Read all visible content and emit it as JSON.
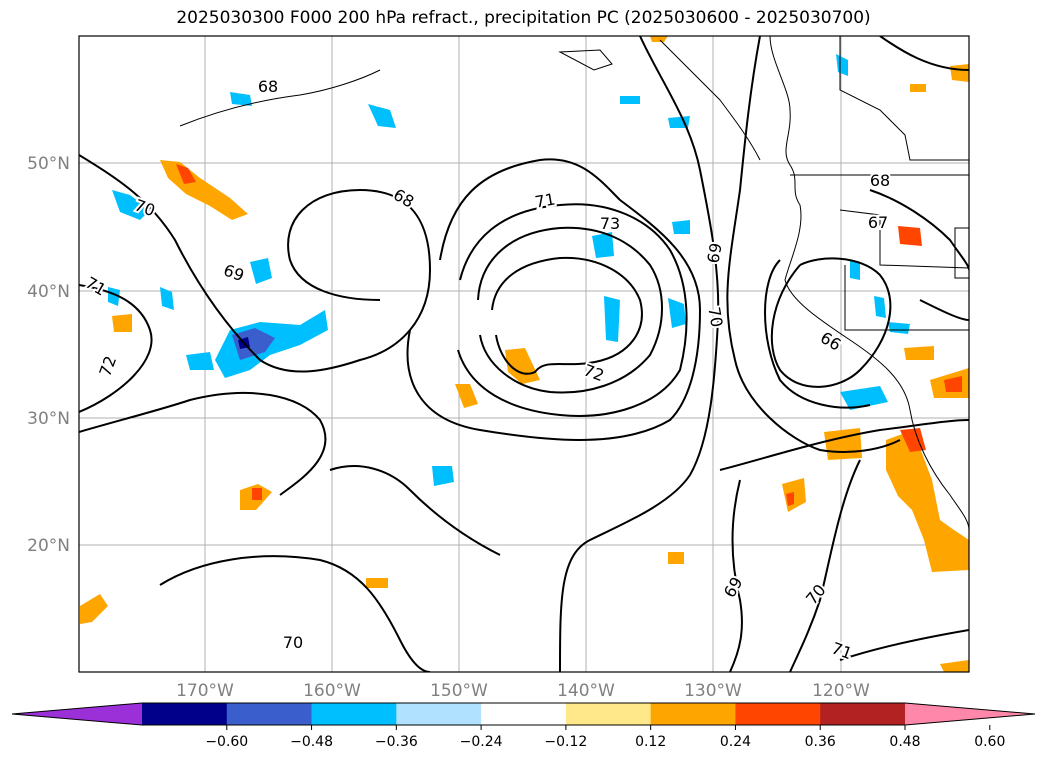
{
  "title": "2025030300 F000 200 hPa refract., precipitation PC (2025030600 - 2025030700)",
  "lat_labels": [
    "50°N",
    "40°N",
    "30°N",
    "20°N"
  ],
  "lon_labels": [
    "170°W",
    "160°W",
    "150°W",
    "140°W",
    "130°W",
    "120°W"
  ],
  "contour_labels": [
    "68",
    "70",
    "71",
    "69",
    "68",
    "71",
    "73",
    "72",
    "72",
    "69",
    "70",
    "66",
    "68",
    "67",
    "70",
    "69",
    "70",
    "71"
  ],
  "colorbar": {
    "ticks": [
      "−0.60",
      "−0.48",
      "−0.36",
      "−0.24",
      "−0.12",
      "0.12",
      "0.24",
      "0.36",
      "0.48",
      "0.60"
    ],
    "colors": [
      "#9b30d9",
      "#00008b",
      "#3a5fcd",
      "#00bfff",
      "#b0e2ff",
      "#ffffff",
      "#ffe88a",
      "#ffa500",
      "#ff4500",
      "#b22222",
      "#ff88aa"
    ]
  }
}
